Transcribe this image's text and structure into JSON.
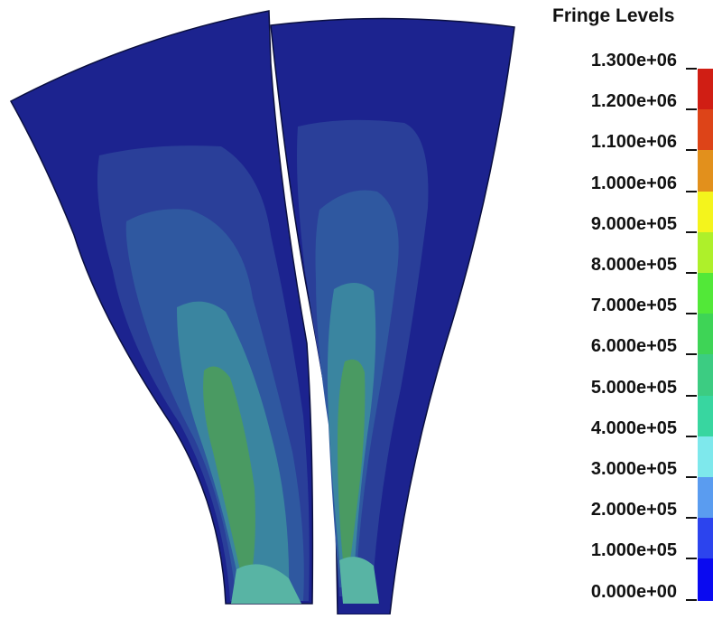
{
  "legend": {
    "title": "Fringe Levels",
    "levels": [
      "1.300e+06",
      "1.200e+06",
      "1.100e+06",
      "1.000e+06",
      "9.000e+05",
      "8.000e+05",
      "7.000e+05",
      "6.000e+05",
      "5.000e+05",
      "4.000e+05",
      "3.000e+05",
      "2.000e+05",
      "1.000e+05",
      "0.000e+00"
    ],
    "band_colors": [
      "#d01e14",
      "#dd4418",
      "#e2901c",
      "#f4f41c",
      "#aef02a",
      "#52e838",
      "#3ed456",
      "#3ccc82",
      "#38d6a0",
      "#7ee8ec",
      "#5a9cf0",
      "#2c44ee",
      "#0a0af0"
    ]
  },
  "fringe_colors": {
    "outer": "#1c238f",
    "band1": "#2a3f99",
    "band2": "#2f58a0",
    "band3": "#3a85a0",
    "band4": "#3f8f7f",
    "core": "#4a9a62",
    "tip": "#58b4a4"
  }
}
